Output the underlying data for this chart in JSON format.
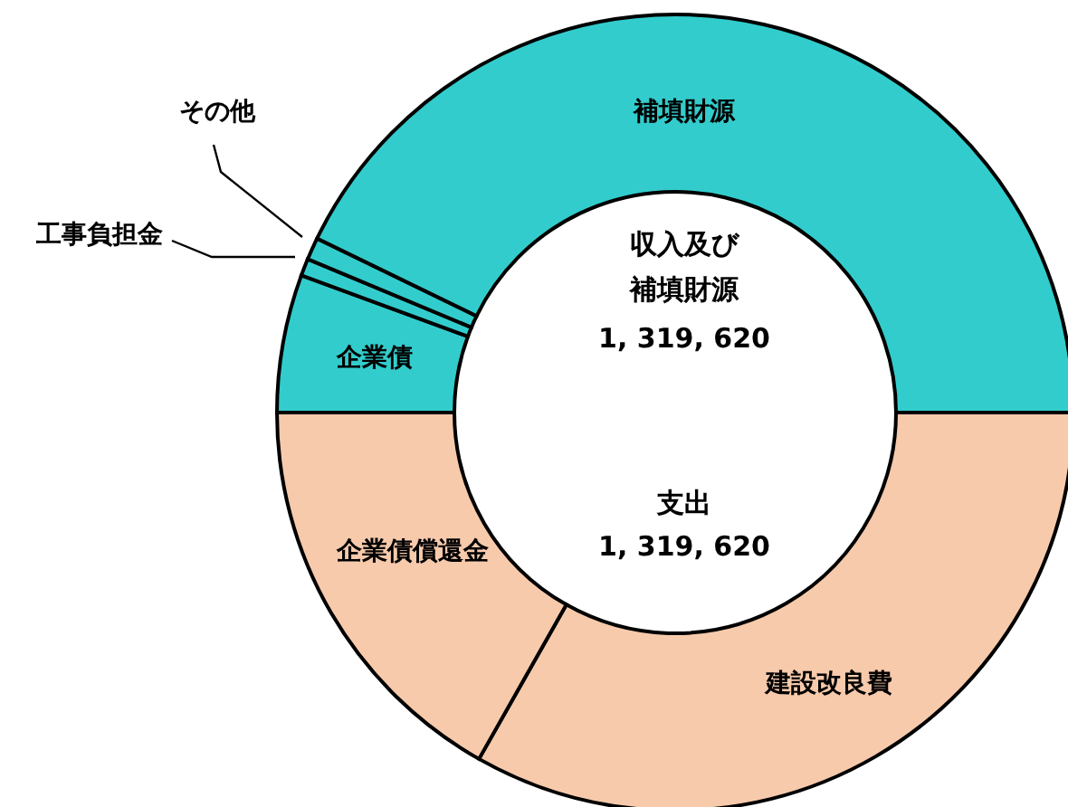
{
  "chart_data": {
    "type": "donut",
    "categories": [
      "企業債",
      "工事負担金",
      "その他",
      "補填財源",
      "建設改良費",
      "企業債償還金"
    ],
    "values": [
      5.6,
      0.7,
      0.9,
      42.8,
      33.2,
      16.8
    ],
    "colors": [
      "#33cccc",
      "#33cccc",
      "#33cccc",
      "#33cccc",
      "#f7caac",
      "#f7caac"
    ],
    "annotations": [
      "収入及び",
      "補填財源",
      "1, 319, 620",
      "支出",
      "1, 319, 620"
    ]
  }
}
